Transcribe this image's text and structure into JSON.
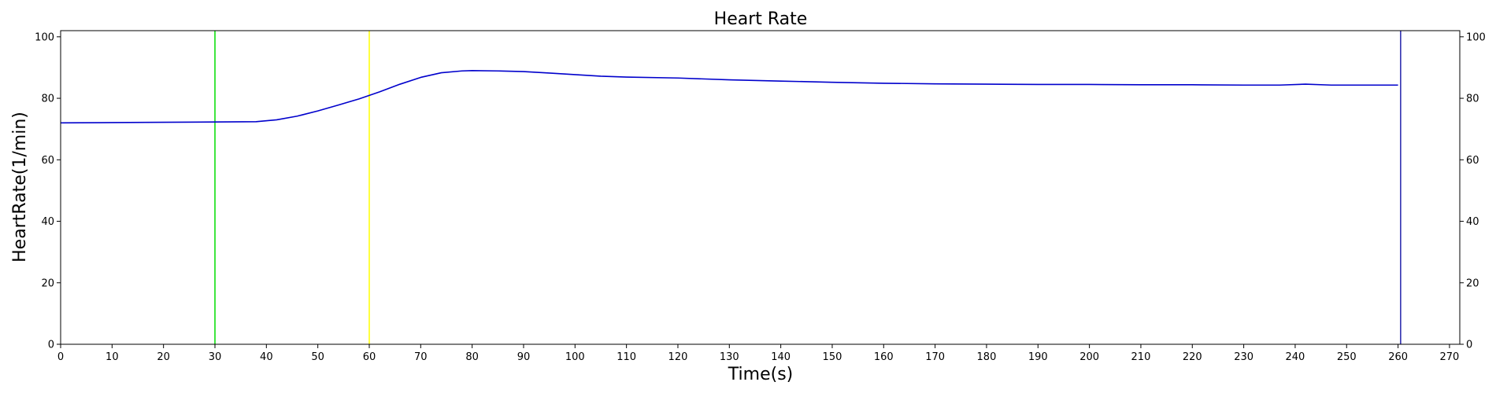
{
  "chart_data": {
    "type": "line",
    "title": "Heart Rate",
    "xlabel": "Time(s)",
    "ylabel": "HeartRate(1/min)",
    "xlim": [
      0,
      272
    ],
    "ylim": [
      0,
      102
    ],
    "x_ticks": [
      0,
      10,
      20,
      30,
      40,
      50,
      60,
      70,
      80,
      90,
      100,
      110,
      120,
      130,
      140,
      150,
      160,
      170,
      180,
      190,
      200,
      210,
      220,
      230,
      240,
      250,
      260,
      270
    ],
    "y_ticks": [
      0,
      20,
      40,
      60,
      80,
      100
    ],
    "right_y_axis": true,
    "grid": false,
    "series": [
      {
        "color": "#0000cc",
        "x": [
          0,
          10,
          20,
          30,
          38,
          42,
          46,
          50,
          54,
          58,
          62,
          66,
          70,
          74,
          78,
          80,
          85,
          90,
          95,
          100,
          105,
          110,
          120,
          130,
          140,
          150,
          160,
          170,
          180,
          190,
          200,
          210,
          220,
          230,
          237,
          242,
          247,
          252,
          260
        ],
        "y": [
          72.0,
          72.1,
          72.2,
          72.3,
          72.4,
          73.0,
          74.2,
          75.9,
          77.8,
          79.8,
          82.1,
          84.6,
          86.8,
          88.3,
          88.9,
          89.0,
          88.9,
          88.7,
          88.2,
          87.7,
          87.2,
          86.9,
          86.6,
          86.0,
          85.6,
          85.2,
          84.9,
          84.7,
          84.6,
          84.5,
          84.5,
          84.4,
          84.4,
          84.3,
          84.3,
          84.6,
          84.3,
          84.3,
          84.3
        ]
      }
    ],
    "vertical_lines": [
      {
        "x": 30,
        "color": "#00dd00"
      },
      {
        "x": 60,
        "color": "#ffff00"
      },
      {
        "x": 260.5,
        "color": "#2222aa"
      }
    ]
  }
}
